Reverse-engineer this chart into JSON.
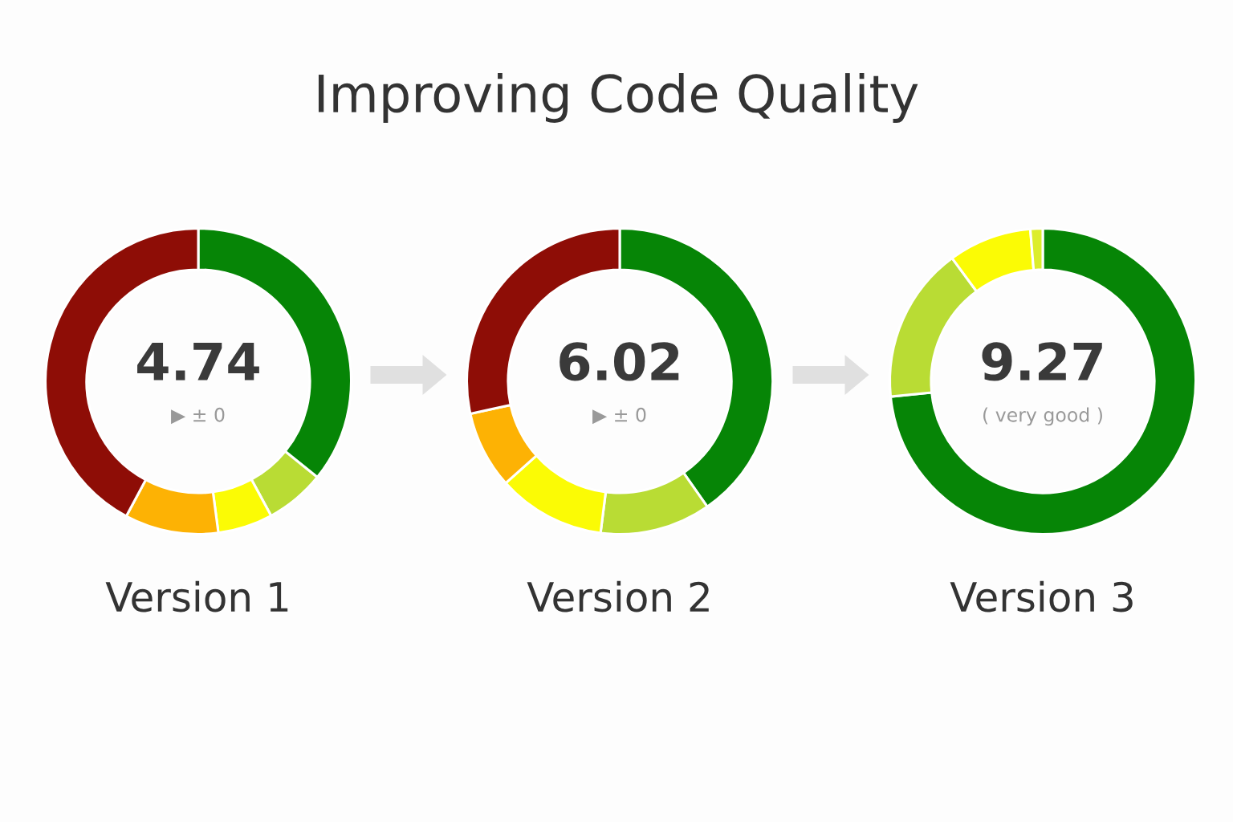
{
  "chart_data": [
    {
      "type": "other",
      "title": "Improving Code Quality"
    },
    {
      "type": "donut",
      "title": "Version 1",
      "categories": [
        null,
        null,
        null,
        null,
        null
      ],
      "values": [
        35.8,
        6.3,
        5.8,
        9.9,
        42.2
      ],
      "colors": [
        "#068506",
        "#b9dc34",
        "#fbfb05",
        "#fdb204",
        "#8e0d06"
      ],
      "annotations": [
        "4.74",
        "▶ ± 0"
      ]
    },
    {
      "type": "donut",
      "title": "Version 2",
      "categories": [
        null,
        null,
        null,
        null,
        null
      ],
      "values": [
        40.3,
        11.7,
        11.4,
        8.2,
        28.4
      ],
      "colors": [
        "#068506",
        "#b9dc34",
        "#fbfb05",
        "#fdb204",
        "#8e0d06"
      ],
      "annotations": [
        "6.02",
        "▶ ± 0"
      ]
    },
    {
      "type": "donut",
      "title": "Version 3",
      "categories": [
        null,
        null,
        null,
        null
      ],
      "values": [
        73.4,
        16.5,
        8.8,
        1.3
      ],
      "colors": [
        "#068506",
        "#b9dc34",
        "#fbfb05",
        "#dced2c"
      ],
      "annotations": [
        "9.27",
        "( very good )"
      ]
    }
  ]
}
